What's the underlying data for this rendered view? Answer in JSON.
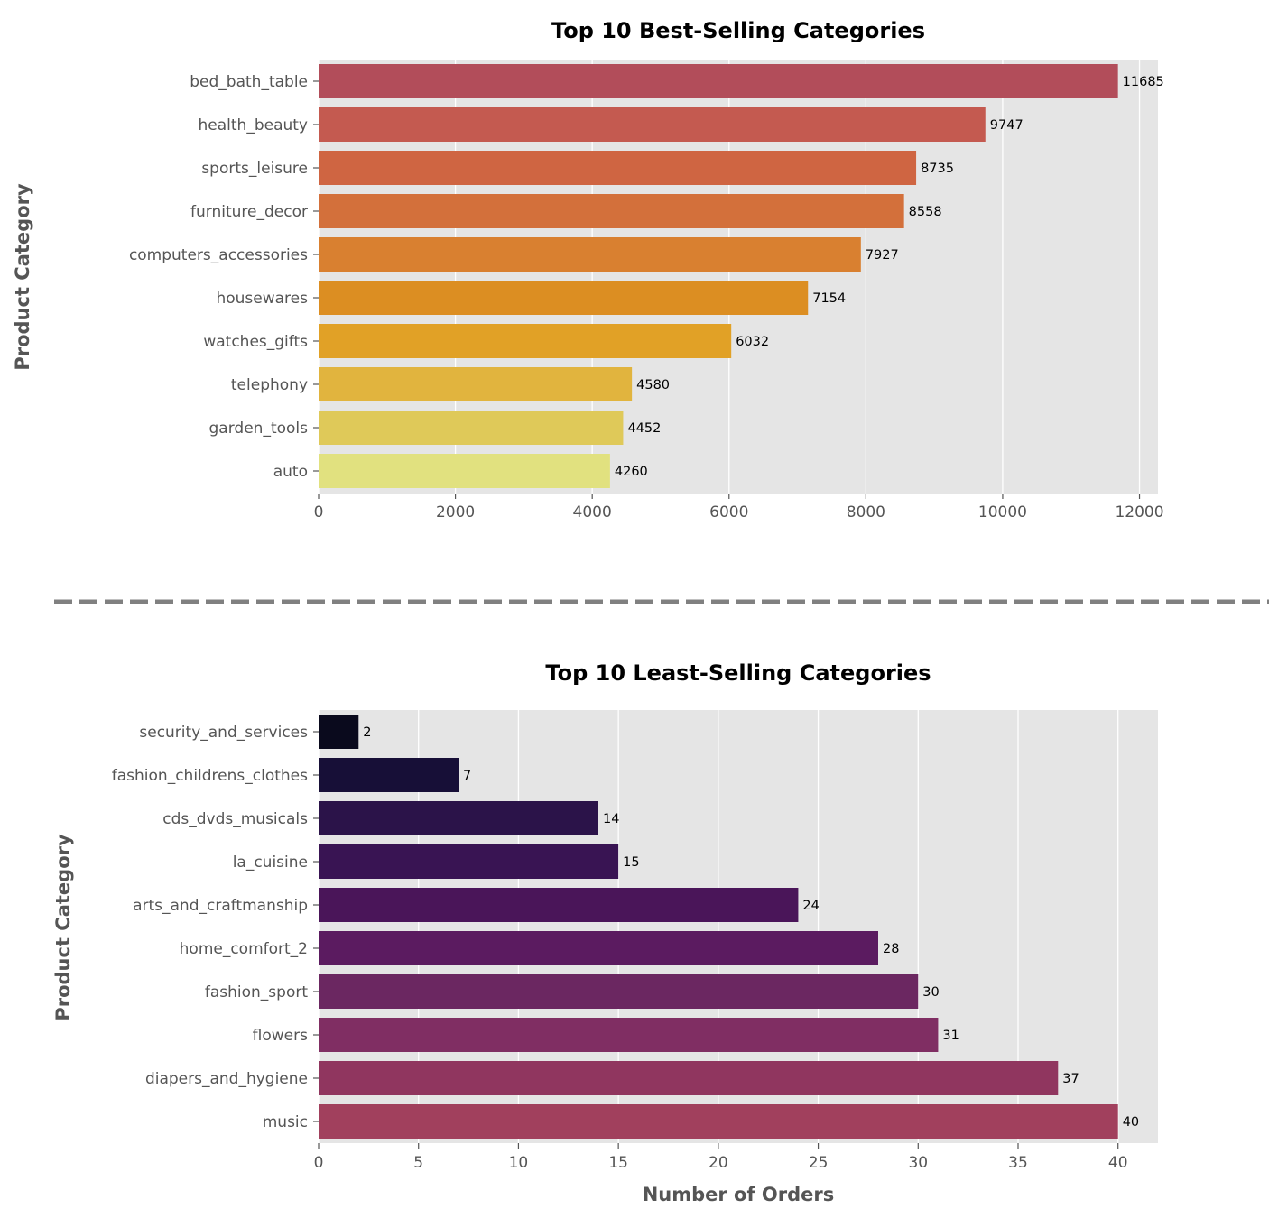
{
  "chart_data": [
    {
      "type": "bar",
      "orientation": "horizontal",
      "title": "Top 10 Best-Selling Categories",
      "xlabel": "",
      "ylabel": "Product Category",
      "categories": [
        "bed_bath_table",
        "health_beauty",
        "sports_leisure",
        "furniture_decor",
        "computers_accessories",
        "housewares",
        "watches_gifts",
        "telephony",
        "garden_tools",
        "auto"
      ],
      "values": [
        11685,
        9747,
        8735,
        8558,
        7927,
        7154,
        6032,
        4580,
        4452,
        4260
      ],
      "xlim": [
        0,
        12270
      ],
      "xticks": [
        0,
        2000,
        4000,
        6000,
        8000,
        10000,
        12000
      ],
      "grid": true,
      "colors": [
        "#b24d5a",
        "#c45a50",
        "#cf6542",
        "#d3703b",
        "#d98030",
        "#dc8e22",
        "#e1a126",
        "#e1b43e",
        "#dfc959",
        "#e1e17f"
      ]
    },
    {
      "type": "bar",
      "orientation": "horizontal",
      "title": "Top 10 Least-Selling Categories",
      "xlabel": "Number of Orders",
      "ylabel": "Product Category",
      "categories": [
        "security_and_services",
        "fashion_childrens_clothes",
        "cds_dvds_musicals",
        "la_cuisine",
        "arts_and_craftmanship",
        "home_comfort_2",
        "fashion_sport",
        "flowers",
        "diapers_and_hygiene",
        "music"
      ],
      "values": [
        2,
        7,
        14,
        15,
        24,
        28,
        30,
        31,
        37,
        40
      ],
      "xlim": [
        0,
        42
      ],
      "xticks": [
        0,
        5,
        10,
        15,
        20,
        25,
        30,
        35,
        40
      ],
      "grid": true,
      "colors": [
        "#0a0a1d",
        "#170f37",
        "#2b1349",
        "#391453",
        "#4a1559",
        "#5b1b60",
        "#6b2761",
        "#802e63",
        "#90365f",
        "#a1405d"
      ]
    }
  ],
  "separator": {
    "style": "dashed",
    "color": "#808080"
  }
}
